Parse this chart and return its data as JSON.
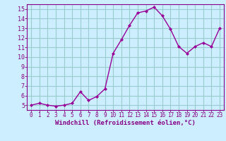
{
  "x": [
    0,
    1,
    2,
    3,
    4,
    5,
    6,
    7,
    8,
    9,
    10,
    11,
    12,
    13,
    14,
    15,
    16,
    17,
    18,
    19,
    20,
    21,
    22,
    23
  ],
  "y": [
    5.0,
    5.2,
    5.0,
    4.9,
    5.0,
    5.2,
    6.4,
    5.5,
    5.9,
    6.7,
    10.4,
    11.8,
    13.3,
    14.6,
    14.8,
    15.2,
    14.3,
    12.9,
    11.1,
    10.4,
    11.1,
    11.5,
    11.1,
    13.0
  ],
  "line_color": "#990099",
  "marker": "D",
  "marker_size": 2.0,
  "bg_color": "#cceeff",
  "grid_color": "#99cccc",
  "xlabel": "Windchill (Refroidissement éolien,°C)",
  "xlabel_color": "#880088",
  "tick_color": "#880088",
  "spine_color": "#880088",
  "ylim": [
    4.5,
    15.5
  ],
  "xlim": [
    -0.5,
    23.5
  ],
  "yticks": [
    5,
    6,
    7,
    8,
    9,
    10,
    11,
    12,
    13,
    14,
    15
  ],
  "xticks": [
    0,
    1,
    2,
    3,
    4,
    5,
    6,
    7,
    8,
    9,
    10,
    11,
    12,
    13,
    14,
    15,
    16,
    17,
    18,
    19,
    20,
    21,
    22,
    23
  ],
  "xlabel_fontsize": 6.5,
  "xtick_fontsize": 5.5,
  "ytick_fontsize": 6.0
}
